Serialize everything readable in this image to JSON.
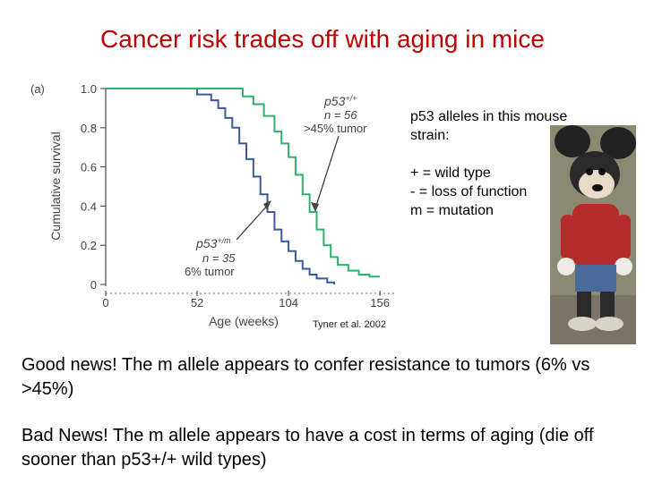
{
  "title": "Cancer risk trades off with aging in mice",
  "chart_data": {
    "type": "line",
    "panel_label": "(a)",
    "ylabel": "Cumulative survival",
    "xlabel": "Age (weeks)",
    "xlim": [
      0,
      160
    ],
    "ylim": [
      0,
      1.0
    ],
    "x_ticks": [
      0,
      52,
      104,
      156
    ],
    "y_ticks": [
      0,
      0.2,
      0.4,
      0.6,
      0.8,
      1.0
    ],
    "y_tick_labels": [
      "0",
      "0.2",
      "0.4",
      "0.6",
      "0.8",
      "1.0"
    ],
    "series": [
      {
        "color": "#3d5a98",
        "annotation": {
          "genotype": "p53",
          "allele": "+/m",
          "n": "n = 35",
          "tumor": "6% tumor"
        },
        "points": [
          [
            0,
            1.0
          ],
          [
            45,
            1.0
          ],
          [
            52,
            0.97
          ],
          [
            60,
            0.94
          ],
          [
            64,
            0.9
          ],
          [
            68,
            0.85
          ],
          [
            72,
            0.8
          ],
          [
            76,
            0.72
          ],
          [
            80,
            0.64
          ],
          [
            84,
            0.55
          ],
          [
            88,
            0.46
          ],
          [
            92,
            0.37
          ],
          [
            96,
            0.28
          ],
          [
            100,
            0.22
          ],
          [
            104,
            0.17
          ],
          [
            108,
            0.12
          ],
          [
            112,
            0.08
          ],
          [
            116,
            0.05
          ],
          [
            120,
            0.03
          ],
          [
            126,
            0.01
          ],
          [
            130,
            0
          ]
        ]
      },
      {
        "color": "#2db36a",
        "annotation": {
          "genotype": "p53",
          "allele": "+/+",
          "n": "n = 56",
          "tumor": ">45% tumor"
        },
        "points": [
          [
            0,
            1.0
          ],
          [
            70,
            1.0
          ],
          [
            78,
            0.96
          ],
          [
            84,
            0.92
          ],
          [
            90,
            0.86
          ],
          [
            96,
            0.78
          ],
          [
            100,
            0.72
          ],
          [
            104,
            0.65
          ],
          [
            108,
            0.56
          ],
          [
            112,
            0.46
          ],
          [
            116,
            0.37
          ],
          [
            120,
            0.28
          ],
          [
            124,
            0.2
          ],
          [
            128,
            0.14
          ],
          [
            132,
            0.1
          ],
          [
            138,
            0.07
          ],
          [
            144,
            0.05
          ],
          [
            150,
            0.04
          ],
          [
            156,
            0.04
          ]
        ]
      }
    ]
  },
  "notes": {
    "line1": "p53 alleles in this mouse strain:",
    "line2": "+ = wild type",
    "line3": "- = loss of function",
    "line4": "m = mutation"
  },
  "citation": "Tyner et al. 2002",
  "body": {
    "good_news": "Good news!  The m allele appears to confer resistance to tumors (6% vs >45%)",
    "bad_news": "Bad News!   The m allele appears to have a cost in terms of aging (die off sooner than p53+/+ wild types)"
  }
}
